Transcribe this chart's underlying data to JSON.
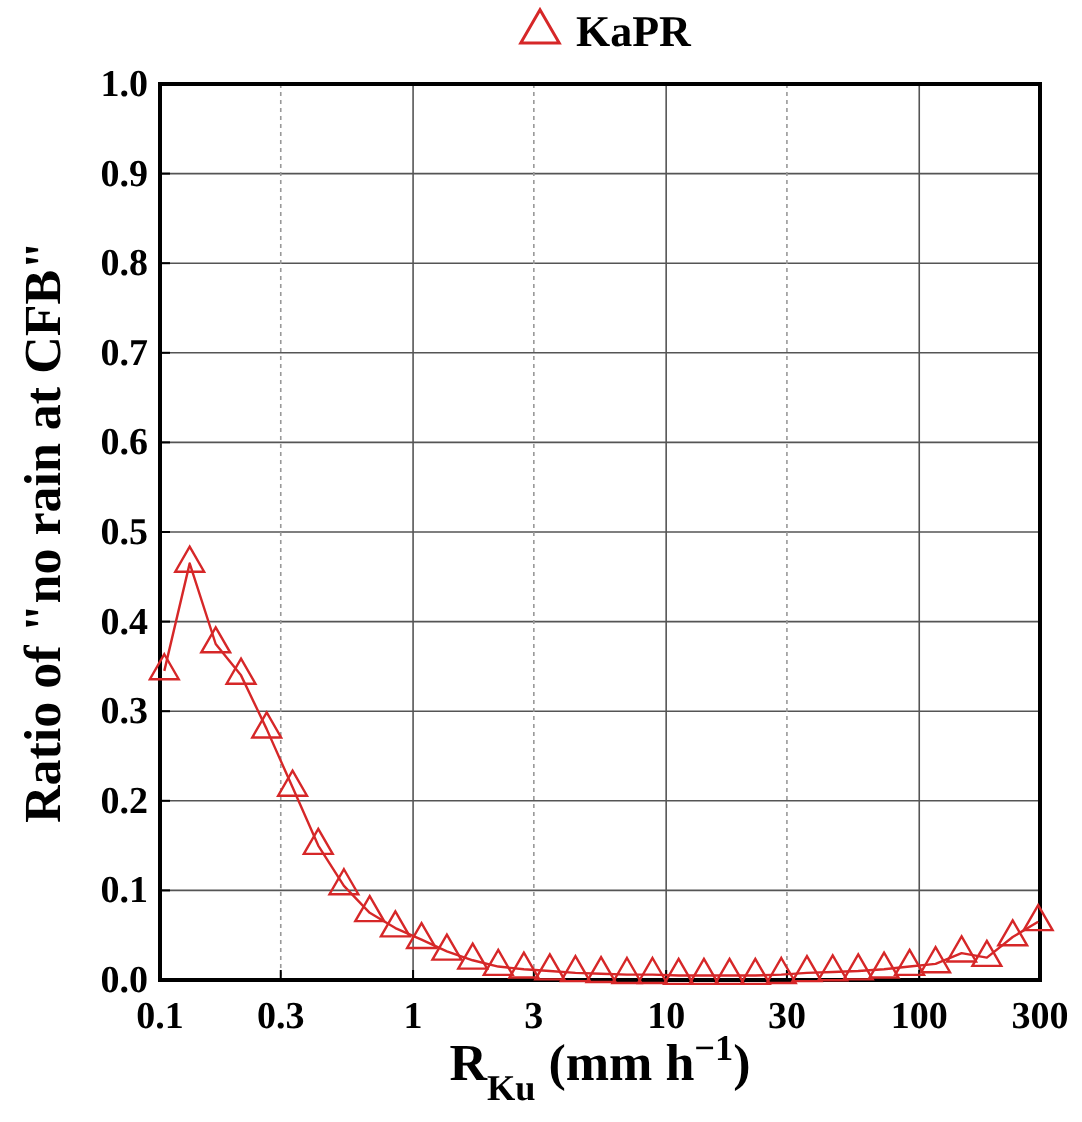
{
  "chart_data": {
    "type": "line",
    "xlabel": "R$_{Ku}$ (mm h$^{−1}$)",
    "ylabel": "Ratio of \"no rain at CFB\"",
    "x": [
      0.104,
      0.131,
      0.166,
      0.209,
      0.264,
      0.334,
      0.422,
      0.533,
      0.674,
      0.851,
      1.08,
      1.36,
      1.72,
      2.17,
      2.74,
      3.47,
      4.38,
      5.53,
      7.0,
      8.83,
      11.2,
      14.1,
      17.8,
      22.5,
      28.5,
      36.0,
      45.5,
      57.4,
      72.6,
      91.6,
      116,
      147,
      185,
      234,
      295
    ],
    "series": [
      {
        "name": "KaPR",
        "color": "#d62728",
        "values": [
          0.345,
          0.465,
          0.375,
          0.34,
          0.28,
          0.215,
          0.15,
          0.105,
          0.075,
          0.058,
          0.045,
          0.032,
          0.022,
          0.015,
          0.012,
          0.01,
          0.008,
          0.007,
          0.006,
          0.006,
          0.005,
          0.005,
          0.005,
          0.005,
          0.006,
          0.008,
          0.009,
          0.01,
          0.012,
          0.015,
          0.018,
          0.03,
          0.025,
          0.048,
          0.065
        ]
      }
    ],
    "xlim": [
      0.1,
      300
    ],
    "ylim": [
      0,
      1
    ],
    "log": "x",
    "xticks": [
      0.1,
      0.3,
      1,
      3,
      10,
      30,
      100,
      300
    ],
    "yticks": [
      {
        "value": 0,
        "label": "0.0"
      },
      {
        "value": 0.1,
        "label": "0.1"
      },
      {
        "value": 0.2,
        "label": "0.2"
      },
      {
        "value": 0.3,
        "label": "0.3"
      },
      {
        "value": 0.4,
        "label": "0.4"
      },
      {
        "value": 0.5,
        "label": "0.5"
      },
      {
        "value": 0.6,
        "label": "0.6"
      },
      {
        "value": 0.7,
        "label": "0.7"
      },
      {
        "value": 0.8,
        "label": "0.8"
      },
      {
        "value": 0.9,
        "label": "0.9"
      },
      {
        "value": 1,
        "label": "1.0"
      }
    ],
    "grid": true,
    "legend": "top",
    "marker": "triangle",
    "line_style": "solid"
  }
}
